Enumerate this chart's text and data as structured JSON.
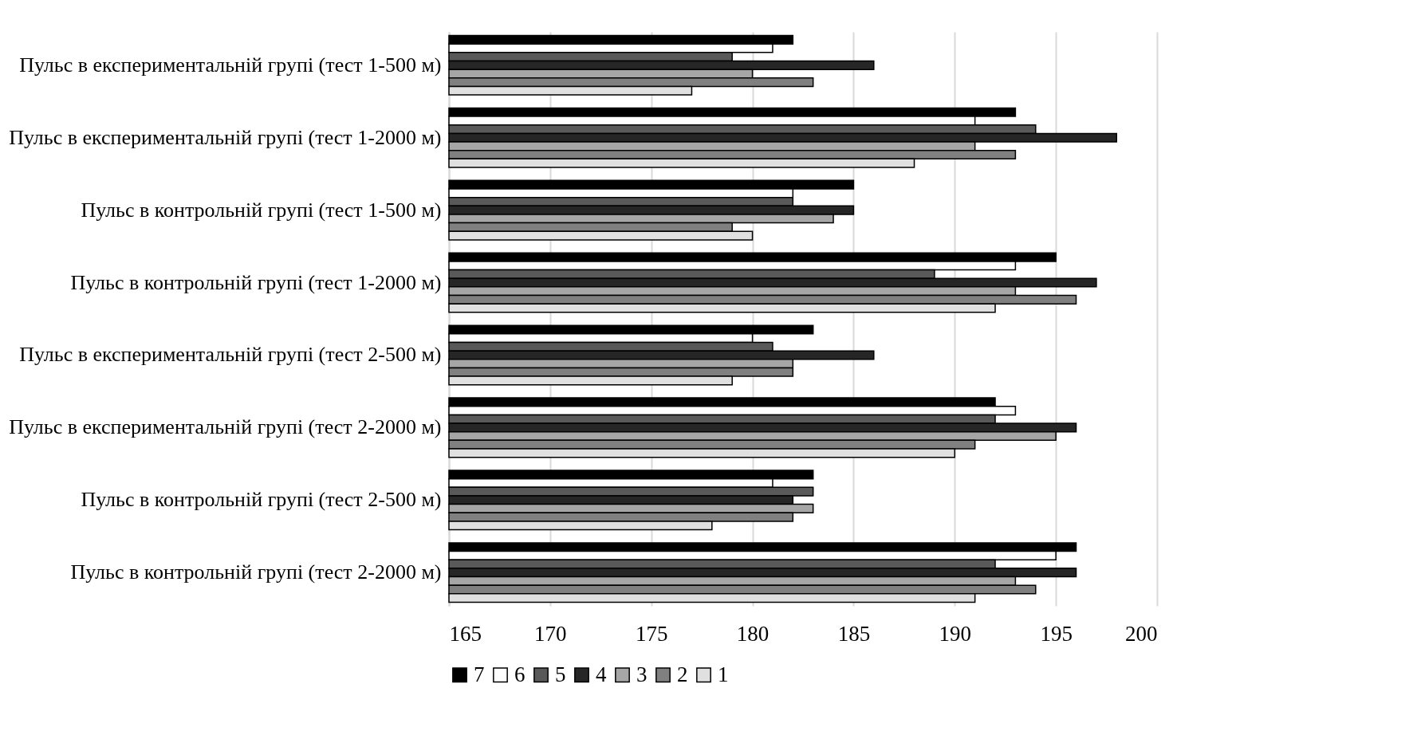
{
  "chart_data": {
    "type": "bar",
    "orientation": "horizontal",
    "categories": [
      "Пульс в експериментальній групі (тест 1-500 м)",
      "Пульс в експериментальній групі (тест 1-2000 м)",
      "Пульс в контрольній групі (тест 1-500 м)",
      "Пульс в контрольній групі (тест 1-2000 м)",
      "Пульс в експериментальній групі (тест 2-500 м)",
      "Пульс в експериментальній групі (тест 2-2000 м)",
      "Пульс в контрольній групі (тест 2-500 м)",
      "Пульс в контрольній групі (тест 2-2000 м)"
    ],
    "series": [
      {
        "name": "7",
        "color": "#000000",
        "values": [
          182,
          193,
          185,
          195,
          183,
          192,
          183,
          196
        ]
      },
      {
        "name": "6",
        "color": "#ffffff",
        "values": [
          181,
          191,
          182,
          193,
          180,
          193,
          181,
          195
        ]
      },
      {
        "name": "5",
        "color": "#595959",
        "values": [
          179,
          194,
          182,
          189,
          181,
          192,
          183,
          192
        ]
      },
      {
        "name": "4",
        "color": "#262626",
        "values": [
          186,
          198,
          185,
          197,
          186,
          196,
          182,
          196
        ]
      },
      {
        "name": "3",
        "color": "#a6a6a6",
        "values": [
          180,
          191,
          184,
          193,
          182,
          195,
          183,
          193
        ]
      },
      {
        "name": "2",
        "color": "#808080",
        "values": [
          183,
          193,
          179,
          196,
          182,
          191,
          182,
          194
        ]
      },
      {
        "name": "1",
        "color": "#e0e0e0",
        "values": [
          177,
          188,
          180,
          192,
          179,
          190,
          178,
          191
        ]
      }
    ],
    "xlim": [
      165,
      200
    ],
    "xticks": [
      165,
      170,
      175,
      180,
      185,
      190,
      195,
      200
    ],
    "grid": "x",
    "legend": "bottom"
  }
}
